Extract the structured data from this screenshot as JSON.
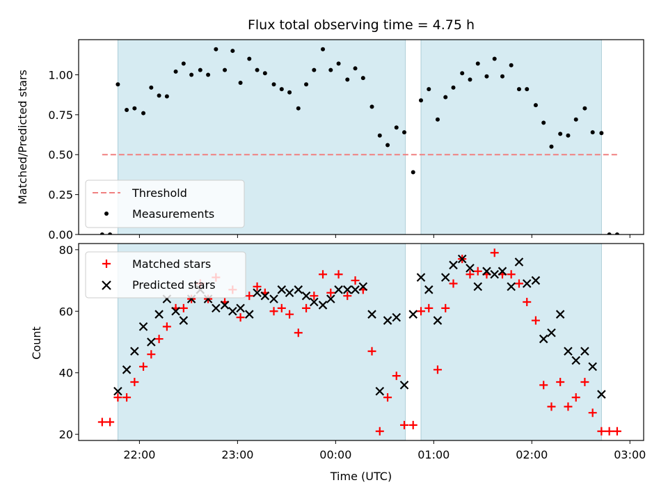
{
  "chart_data": {
    "title": "Flux total observing time = 4.75 h",
    "xlabel": "Time (UTC)",
    "x_unit": "hours since 00:00 UTC",
    "xlim": [
      -2.62,
      3.14
    ],
    "xticks": [
      {
        "value": -2,
        "label": "22:00"
      },
      {
        "value": -1,
        "label": "23:00"
      },
      {
        "value": 0,
        "label": "00:00"
      },
      {
        "value": 1,
        "label": "01:00"
      },
      {
        "value": 2,
        "label": "02:00"
      },
      {
        "value": 3,
        "label": "03:00"
      }
    ],
    "shaded_intervals": [
      [
        -2.22,
        0.71
      ],
      [
        0.87,
        2.71
      ]
    ],
    "colors": {
      "shade": "#add8e6",
      "threshold": "#f08080",
      "matched": "#ff0000",
      "predicted": "#000000",
      "measurement": "#000000"
    },
    "panels": [
      {
        "type": "scatter",
        "ylabel": "Matched/Predicted stars",
        "ylim": [
          0,
          1.22
        ],
        "yticks": [
          {
            "value": 0,
            "label": "0.00"
          },
          {
            "value": 0.25,
            "label": "0.25"
          },
          {
            "value": 0.5,
            "label": "0.50"
          },
          {
            "value": 0.75,
            "label": "0.75"
          },
          {
            "value": 1.0,
            "label": "1.00"
          }
        ],
        "legend": {
          "position": "lower-left",
          "entries": [
            "Threshold",
            "Measurements"
          ]
        },
        "threshold": {
          "name": "Threshold",
          "value": 0.5,
          "x_range": [
            -2.38,
            2.88
          ]
        },
        "measurements": {
          "name": "Measurements",
          "x": [
            -2.38,
            -2.3,
            -2.22,
            -2.13,
            -2.05,
            -1.96,
            -1.88,
            -1.8,
            -1.72,
            -1.63,
            -1.55,
            -1.47,
            -1.38,
            -1.3,
            -1.22,
            -1.13,
            -1.05,
            -0.97,
            -0.88,
            -0.8,
            -0.72,
            -0.63,
            -0.55,
            -0.47,
            -0.38,
            -0.3,
            -0.22,
            -0.13,
            -0.05,
            0.03,
            0.12,
            0.2,
            0.28,
            0.37,
            0.45,
            0.53,
            0.62,
            0.7,
            0.79,
            0.87,
            0.95,
            1.04,
            1.12,
            1.2,
            1.29,
            1.37,
            1.45,
            1.54,
            1.62,
            1.7,
            1.79,
            1.87,
            1.95,
            2.04,
            2.12,
            2.2,
            2.29,
            2.37,
            2.45,
            2.54,
            2.62,
            2.71,
            2.79,
            2.87
          ],
          "y": [
            0.0,
            0.0,
            0.94,
            0.78,
            0.79,
            0.76,
            0.92,
            0.87,
            0.865,
            1.02,
            1.07,
            1.0,
            1.03,
            1.0,
            1.16,
            1.03,
            1.15,
            0.95,
            1.1,
            1.03,
            1.01,
            0.94,
            0.91,
            0.89,
            0.79,
            0.94,
            1.03,
            1.16,
            1.03,
            1.07,
            0.97,
            1.04,
            0.98,
            0.8,
            0.62,
            0.56,
            0.67,
            0.64,
            0.39,
            0.84,
            0.91,
            0.72,
            0.86,
            0.92,
            1.01,
            0.97,
            1.07,
            0.99,
            1.1,
            0.99,
            1.06,
            0.91,
            0.91,
            0.81,
            0.7,
            0.55,
            0.63,
            0.62,
            0.72,
            0.79,
            0.64,
            0.635,
            0.0,
            0.0
          ]
        }
      },
      {
        "type": "scatter",
        "ylabel": "Count",
        "ylim": [
          18,
          82
        ],
        "yticks": [
          {
            "value": 20,
            "label": "20"
          },
          {
            "value": 40,
            "label": "40"
          },
          {
            "value": 60,
            "label": "60"
          },
          {
            "value": 80,
            "label": "80"
          }
        ],
        "legend": {
          "position": "top-left",
          "entries": [
            "Matched stars",
            "Predicted stars"
          ]
        },
        "series": [
          {
            "name": "Matched stars",
            "marker": "plus",
            "x": [
              -2.38,
              -2.3,
              -2.22,
              -2.13,
              -2.05,
              -1.96,
              -1.88,
              -1.8,
              -1.72,
              -1.63,
              -1.55,
              -1.47,
              -1.38,
              -1.3,
              -1.22,
              -1.13,
              -1.05,
              -0.97,
              -0.88,
              -0.8,
              -0.72,
              -0.63,
              -0.55,
              -0.47,
              -0.38,
              -0.3,
              -0.22,
              -0.13,
              -0.05,
              0.03,
              0.12,
              0.2,
              0.28,
              0.37,
              0.45,
              0.53,
              0.62,
              0.7,
              0.79,
              0.87,
              0.95,
              1.04,
              1.12,
              1.2,
              1.29,
              1.37,
              1.45,
              1.54,
              1.62,
              1.7,
              1.79,
              1.87,
              1.95,
              2.04,
              2.12,
              2.2,
              2.29,
              2.37,
              2.45,
              2.54,
              2.62,
              2.71,
              2.79,
              2.87
            ],
            "y": [
              24,
              24,
              32,
              32,
              37,
              42,
              46,
              51,
              55,
              61,
              61,
              64,
              69,
              64,
              71,
              63,
              67,
              58,
              65,
              68,
              66,
              60,
              61,
              59,
              53,
              61,
              65,
              72,
              66,
              72,
              65,
              70,
              67,
              47,
              21,
              32,
              39,
              23,
              23,
              60,
              61,
              41,
              61,
              69,
              77,
              72,
              73,
              72,
              79,
              72,
              72,
              69,
              63,
              57,
              36,
              29,
              37,
              29,
              32,
              37,
              27,
              21,
              21,
              21
            ]
          },
          {
            "name": "Predicted stars",
            "marker": "x",
            "x": [
              -2.22,
              -2.13,
              -2.05,
              -1.96,
              -1.88,
              -1.8,
              -1.72,
              -1.63,
              -1.55,
              -1.47,
              -1.38,
              -1.3,
              -1.22,
              -1.13,
              -1.05,
              -0.97,
              -0.88,
              -0.8,
              -0.72,
              -0.63,
              -0.55,
              -0.47,
              -0.38,
              -0.3,
              -0.22,
              -0.13,
              -0.05,
              0.03,
              0.12,
              0.2,
              0.28,
              0.37,
              0.45,
              0.53,
              0.62,
              0.7,
              0.79,
              0.87,
              0.95,
              1.04,
              1.12,
              1.2,
              1.29,
              1.37,
              1.45,
              1.54,
              1.62,
              1.7,
              1.79,
              1.87,
              1.95,
              2.04,
              2.12,
              2.2,
              2.29,
              2.37,
              2.45,
              2.54,
              2.62,
              2.71
            ],
            "y": [
              34,
              41,
              47,
              55,
              50,
              59,
              64,
              60,
              57,
              64,
              67,
              64,
              61,
              62,
              60,
              61,
              59,
              66,
              65,
              64,
              67,
              66,
              67,
              65,
              63,
              62,
              64,
              67,
              67,
              67,
              68,
              59,
              34,
              57,
              58,
              36,
              59,
              71,
              67,
              57,
              71,
              75,
              77,
              74,
              68,
              73,
              72,
              73,
              68,
              76,
              69,
              70,
              51,
              53,
              59,
              47,
              44,
              47,
              42,
              33
            ]
          }
        ]
      }
    ]
  }
}
